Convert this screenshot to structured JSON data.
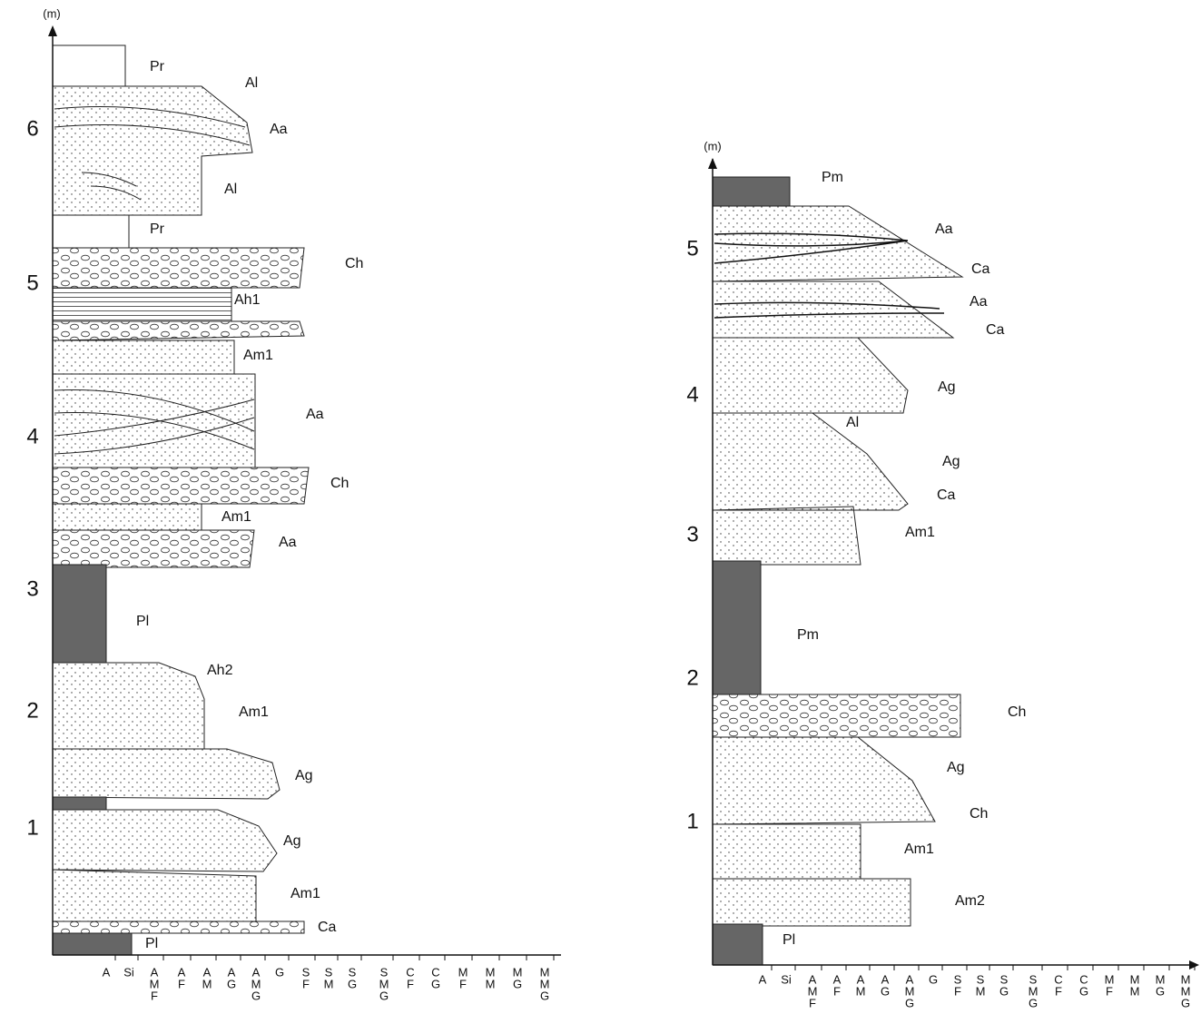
{
  "left_column": {
    "unit": "(m)",
    "depth_ticks": [
      1,
      2,
      3,
      4,
      5,
      6
    ],
    "layers": [
      "Pr",
      "Al",
      "Aa",
      "Al",
      "Pr",
      "Ch",
      "Ah1",
      "Am1",
      "Aa",
      "Ch",
      "Am1",
      "Aa",
      "Pl",
      "Ah2",
      "Am1",
      "Ag",
      "Ag",
      "Am1",
      "Ca",
      "Pl"
    ],
    "grain_size": [
      [
        "A"
      ],
      [
        "Si"
      ],
      [
        "A",
        "M",
        "F"
      ],
      [
        "A",
        "F"
      ],
      [
        "A",
        "M"
      ],
      [
        "A",
        "G"
      ],
      [
        "A",
        "M",
        "G"
      ],
      [
        "G"
      ],
      [
        "S",
        "F"
      ],
      [
        "S",
        "M"
      ],
      [
        "S",
        "G"
      ],
      [
        "S",
        "M",
        "G"
      ],
      [
        "C",
        "F"
      ],
      [
        "C",
        "G"
      ],
      [
        "M",
        "F"
      ],
      [
        "M",
        "M"
      ],
      [
        "M",
        "G"
      ],
      [
        "M",
        "M",
        "G"
      ]
    ]
  },
  "right_column": {
    "unit": "(m)",
    "depth_ticks": [
      1,
      2,
      3,
      4,
      5
    ],
    "layers": [
      "Pm",
      "Aa",
      "Ca",
      "Aa",
      "Ca",
      "Ag",
      "Al",
      "Ag",
      "Ca",
      "Am1",
      "Pm",
      "Ch",
      "Ag",
      "Ch",
      "Am1",
      "Am2",
      "Pl"
    ],
    "grain_size": [
      [
        "A"
      ],
      [
        "Si"
      ],
      [
        "A",
        "M",
        "F"
      ],
      [
        "A",
        "F"
      ],
      [
        "A",
        "M"
      ],
      [
        "A",
        "G"
      ],
      [
        "A",
        "M",
        "G"
      ],
      [
        "G"
      ],
      [
        "S",
        "F"
      ],
      [
        "S",
        "M"
      ],
      [
        "S",
        "G"
      ],
      [
        "S",
        "M",
        "G"
      ],
      [
        "C",
        "F"
      ],
      [
        "C",
        "G"
      ],
      [
        "M",
        "F"
      ],
      [
        "M",
        "M"
      ],
      [
        "M",
        "G"
      ],
      [
        "M",
        "M",
        "G"
      ]
    ]
  }
}
